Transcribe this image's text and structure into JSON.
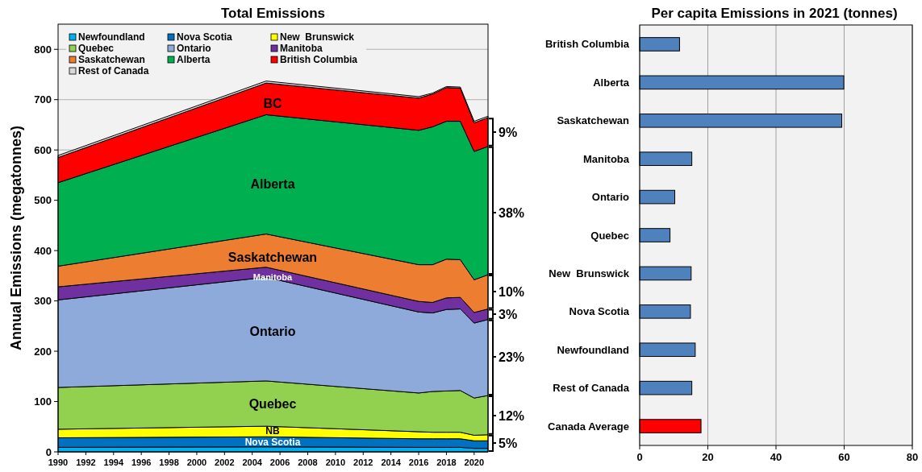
{
  "chart_data": [
    {
      "type": "area",
      "title": "Total Emissions",
      "ylabel": "Annual Emissions (megatonnes)",
      "stacked": true,
      "x": [
        1990,
        2005,
        2016,
        2017,
        2018,
        2019,
        2020,
        2021
      ],
      "xlim": [
        1990,
        2021
      ],
      "xticks": [
        1990,
        1992,
        1994,
        1996,
        1998,
        2000,
        2002,
        2004,
        2006,
        2008,
        2010,
        2012,
        2014,
        2016,
        2018,
        2020
      ],
      "ylim": [
        0,
        850
      ],
      "yticks": [
        0,
        100,
        200,
        300,
        400,
        500,
        600,
        700,
        800
      ],
      "grid": "y",
      "legend": "top left",
      "series": [
        {
          "name": "Newfoundland",
          "color": "#00b0f0",
          "values": [
            9,
            10,
            9,
            9,
            9,
            9,
            7,
            7
          ]
        },
        {
          "name": "Nova Scotia",
          "color": "#0070c0",
          "values": [
            19,
            20,
            17,
            17,
            17,
            17,
            15,
            15
          ]
        },
        {
          "name": "New  Brunswick",
          "color": "#ffff00",
          "values": [
            17,
            21,
            14,
            13,
            13,
            13,
            11,
            12
          ]
        },
        {
          "name": "Quebec",
          "color": "#92d050",
          "values": [
            83,
            90,
            77,
            81,
            82,
            83,
            74,
            78
          ]
        },
        {
          "name": "Ontario",
          "color": "#8eaadb",
          "values": [
            174,
            206,
            161,
            156,
            162,
            162,
            149,
            151
          ]
        },
        {
          "name": "Manitoba",
          "color": "#7030a0",
          "values": [
            26,
            20,
            21,
            21,
            23,
            23,
            21,
            21
          ]
        },
        {
          "name": "Saskatchewan",
          "color": "#ed7d31",
          "values": [
            41,
            66,
            73,
            75,
            77,
            75,
            65,
            68
          ]
        },
        {
          "name": "Alberta",
          "color": "#00b050",
          "values": [
            166,
            237,
            267,
            274,
            274,
            275,
            255,
            255
          ]
        },
        {
          "name": "British Columbia",
          "color": "#ff0000",
          "values": [
            50,
            63,
            64,
            65,
            67,
            66,
            57,
            57
          ]
        },
        {
          "name": "Rest of Canada",
          "color": "#d9d9d9",
          "values": [
            4,
            4,
            3,
            2,
            2,
            2,
            3,
            3
          ]
        }
      ],
      "annotations": [
        "BC",
        "Alberta",
        "Saskatchewan",
        "Manitoba",
        "Ontario",
        "Quebec",
        "NB",
        "Nova Scotia",
        "9%",
        "38%",
        "10%",
        "3%",
        "23%",
        "12%",
        "5%"
      ]
    },
    {
      "type": "bar",
      "orientation": "horizontal",
      "title": "Per capita Emissions in 2021 (tonnes)",
      "categories": [
        "British Columbia",
        "Alberta",
        "Saskatchewan",
        "Manitoba",
        "Ontario",
        "Quebec",
        "New  Brunswick",
        "Nova Scotia",
        "Newfoundland",
        "Rest of Canada",
        "Canada Average"
      ],
      "values": [
        11.7,
        59.9,
        59.3,
        15.3,
        10.3,
        8.9,
        15.1,
        14.9,
        16.3,
        15.3,
        18.0
      ],
      "colors": [
        "#4f81bd",
        "#4f81bd",
        "#4f81bd",
        "#4f81bd",
        "#4f81bd",
        "#4f81bd",
        "#4f81bd",
        "#4f81bd",
        "#4f81bd",
        "#4f81bd",
        "#ff0000"
      ],
      "xlim": [
        0,
        80
      ],
      "xticks": [
        0,
        20,
        40,
        60,
        80
      ],
      "grid": "x"
    }
  ]
}
